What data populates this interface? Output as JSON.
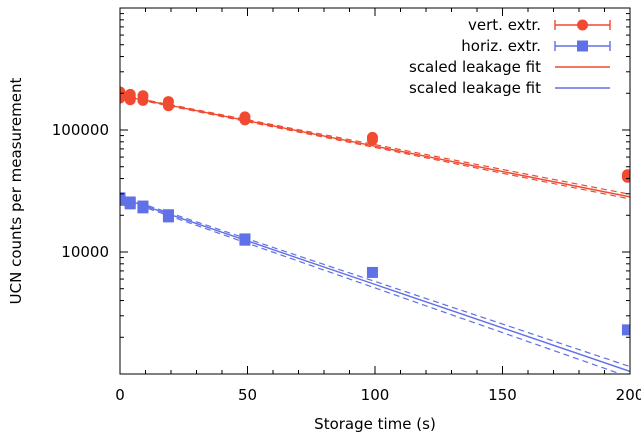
{
  "chart_data": {
    "type": "scatter",
    "xlabel": "Storage time (s)",
    "ylabel": "UCN counts per measurement",
    "xlim": [
      0,
      200
    ],
    "ylim": [
      1000,
      1000000
    ],
    "yscale": "log",
    "xticks": [
      {
        "value": 0,
        "label": "0"
      },
      {
        "value": 50,
        "label": "50"
      },
      {
        "value": 100,
        "label": "100"
      },
      {
        "value": 150,
        "label": "150"
      },
      {
        "value": 200,
        "label": "200"
      }
    ],
    "yticks": [
      {
        "value": 10000,
        "label": "10000"
      },
      {
        "value": 100000,
        "label": "100000"
      }
    ],
    "legend_position": "top-right",
    "grid": false,
    "series": [
      {
        "name": "vert. extr.",
        "kind": "points",
        "marker": "circle",
        "color": "#f04a30",
        "points": [
          [
            0,
            205000
          ],
          [
            0,
            193000
          ],
          [
            0,
            183000
          ],
          [
            4,
            196000
          ],
          [
            4,
            187000
          ],
          [
            4,
            177000
          ],
          [
            9,
            191000
          ],
          [
            9,
            175000
          ],
          [
            19,
            171000
          ],
          [
            19,
            158000
          ],
          [
            49,
            128000
          ],
          [
            49,
            121000
          ],
          [
            99,
            87000
          ],
          [
            99,
            83000
          ],
          [
            199,
            43000
          ],
          [
            199,
            41000
          ]
        ]
      },
      {
        "name": "horiz. extr.",
        "kind": "points",
        "marker": "square",
        "color": "#6070e6",
        "points": [
          [
            0,
            27800
          ],
          [
            0,
            26500
          ],
          [
            4,
            25700
          ],
          [
            4,
            24800
          ],
          [
            9,
            23800
          ],
          [
            9,
            23000
          ],
          [
            19,
            20200
          ],
          [
            19,
            19400
          ],
          [
            49,
            12800
          ],
          [
            49,
            12500
          ],
          [
            99,
            6800
          ],
          [
            199,
            2300
          ]
        ]
      },
      {
        "name": "scaled leakage fit",
        "kind": "band",
        "color": "#f04a30",
        "x": [
          0,
          200
        ],
        "center": [
          192000,
          28300
        ],
        "upper": [
          194000,
          29700
        ],
        "lower": [
          190000,
          27200
        ]
      },
      {
        "name": "scaled leakage fit",
        "kind": "band",
        "color": "#6070e6",
        "x": [
          0,
          200
        ],
        "center": [
          28000,
          1050
        ],
        "upper": [
          28600,
          1150
        ],
        "lower": [
          27400,
          940
        ]
      }
    ]
  }
}
